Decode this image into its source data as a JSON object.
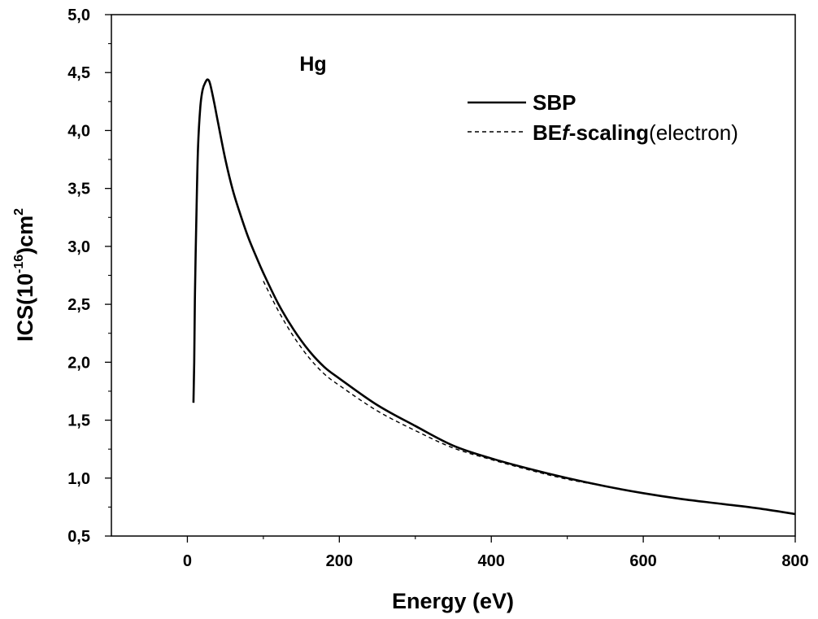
{
  "chart_data": {
    "type": "line",
    "xlabel": "Energy (eV)",
    "ylabel": {
      "prefix": "ICS(10",
      "exponent": "-16",
      "middle": ")cm",
      "power": "2"
    },
    "annotation": "Hg",
    "xlim": [
      -100,
      800
    ],
    "ylim": [
      0.5,
      5.0
    ],
    "xticks": [
      {
        "value": 0,
        "label": "0"
      },
      {
        "value": 200,
        "label": "200"
      },
      {
        "value": 400,
        "label": "400"
      },
      {
        "value": 600,
        "label": "600"
      },
      {
        "value": 800,
        "label": "800"
      }
    ],
    "yticks": [
      {
        "value": 0.5,
        "label": "0,5"
      },
      {
        "value": 1.0,
        "label": "1,0"
      },
      {
        "value": 1.5,
        "label": "1,5"
      },
      {
        "value": 2.0,
        "label": "2,0"
      },
      {
        "value": 2.5,
        "label": "2,5"
      },
      {
        "value": 3.0,
        "label": "3,0"
      },
      {
        "value": 3.5,
        "label": "3,5"
      },
      {
        "value": 4.0,
        "label": "4,0"
      },
      {
        "value": 4.5,
        "label": "4,5"
      },
      {
        "value": 5.0,
        "label": "5,0"
      }
    ],
    "grid": false,
    "legend_position": "top-right",
    "series": [
      {
        "name": "SBP",
        "style": "solid",
        "color": "#000000",
        "x": [
          8,
          9,
          10,
          12,
          14,
          17,
          20,
          24,
          27,
          30,
          35,
          40,
          50,
          60,
          70,
          80,
          90,
          100,
          120,
          140,
          160,
          180,
          200,
          250,
          300,
          350,
          400,
          450,
          500,
          550,
          600,
          650,
          700,
          750,
          800
        ],
        "y": [
          1.65,
          2.0,
          2.6,
          3.3,
          3.85,
          4.2,
          4.35,
          4.42,
          4.44,
          4.4,
          4.25,
          4.08,
          3.75,
          3.48,
          3.27,
          3.08,
          2.92,
          2.77,
          2.5,
          2.28,
          2.1,
          1.96,
          1.86,
          1.63,
          1.45,
          1.28,
          1.17,
          1.08,
          1.0,
          0.93,
          0.87,
          0.82,
          0.78,
          0.74,
          0.69
        ]
      },
      {
        "name": {
          "bold": "BE",
          "italic": "f",
          "bold2": "-scaling",
          "normal": "(electron)"
        },
        "style": "dashed",
        "color": "#000000",
        "x": [
          100,
          120,
          140,
          160,
          180,
          200,
          250,
          300,
          350,
          400,
          450,
          500,
          550,
          600,
          650,
          700,
          750,
          800
        ],
        "y": [
          2.7,
          2.44,
          2.22,
          2.04,
          1.9,
          1.8,
          1.58,
          1.41,
          1.26,
          1.16,
          1.07,
          0.99,
          0.93,
          0.87,
          0.82,
          0.78,
          0.74,
          0.69
        ]
      }
    ]
  }
}
